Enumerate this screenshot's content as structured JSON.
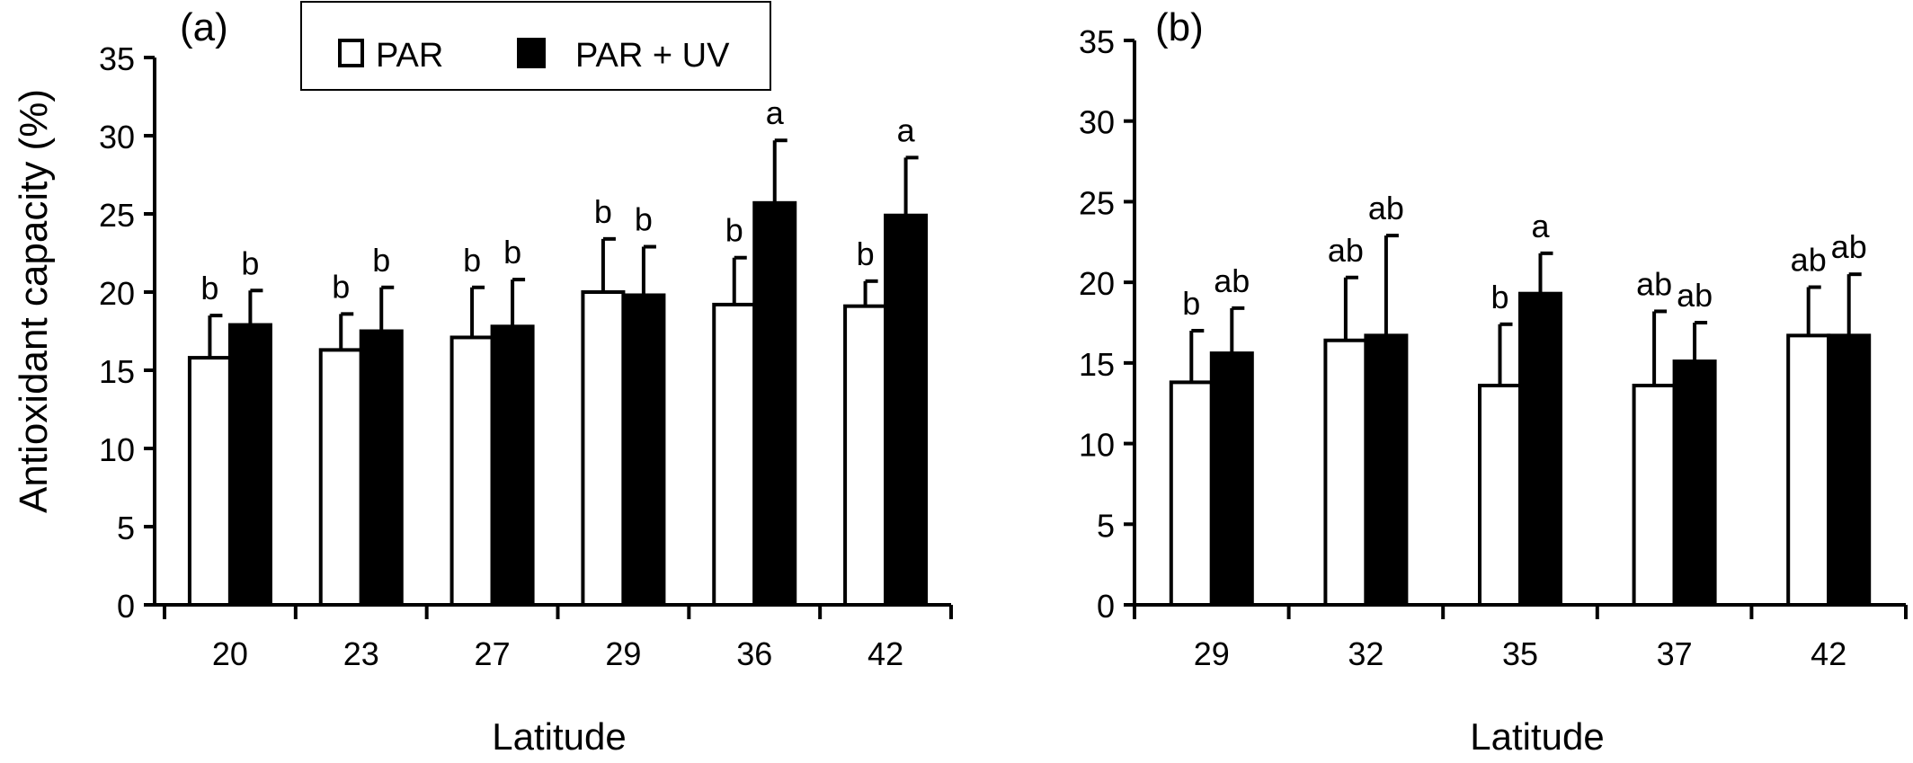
{
  "chart_data": [
    {
      "panel_label": "(a)",
      "type": "bar",
      "ylabel": "Antioxidant capacity (%)",
      "xlabel": "Latitude",
      "ylim": [
        0,
        35
      ],
      "yticks": [
        0,
        5,
        10,
        15,
        20,
        25,
        30,
        35
      ],
      "categories": [
        "20",
        "23",
        "27",
        "29",
        "36",
        "42"
      ],
      "series": [
        {
          "name": "PAR",
          "color": "#ffffff",
          "values": [
            15.8,
            16.3,
            17.1,
            20.0,
            19.2,
            19.1
          ],
          "errors": [
            2.7,
            2.3,
            3.2,
            3.4,
            3.0,
            1.6
          ],
          "letters": [
            "b",
            "b",
            "b",
            "b",
            "b",
            "b"
          ]
        },
        {
          "name": "PAR + UV",
          "color": "#000000",
          "values": [
            17.9,
            17.5,
            17.8,
            19.8,
            25.7,
            24.9
          ],
          "errors": [
            2.2,
            2.8,
            3.0,
            3.1,
            4.0,
            3.7
          ],
          "letters": [
            "b",
            "b",
            "b",
            "b",
            "a",
            "a"
          ]
        }
      ],
      "legend": {
        "position": "top",
        "entries": [
          "PAR",
          "PAR + UV"
        ]
      }
    },
    {
      "panel_label": "(b)",
      "type": "bar",
      "ylabel": "",
      "xlabel": "Latitude",
      "ylim": [
        0,
        35
      ],
      "yticks": [
        0,
        5,
        10,
        15,
        20,
        25,
        30,
        35
      ],
      "categories": [
        "29",
        "32",
        "35",
        "37",
        "42"
      ],
      "series": [
        {
          "name": "PAR",
          "color": "#ffffff",
          "values": [
            13.8,
            16.4,
            13.6,
            13.6,
            16.7
          ],
          "errors": [
            3.2,
            3.9,
            3.8,
            4.6,
            3.0
          ],
          "letters": [
            "b",
            "ab",
            "b",
            "ab",
            "ab"
          ]
        },
        {
          "name": "PAR + UV",
          "color": "#000000",
          "values": [
            15.6,
            16.7,
            19.3,
            15.1,
            16.7
          ],
          "errors": [
            2.8,
            6.2,
            2.5,
            2.4,
            3.8
          ],
          "letters": [
            "ab",
            "ab",
            "a",
            "ab",
            "ab"
          ]
        }
      ]
    }
  ]
}
